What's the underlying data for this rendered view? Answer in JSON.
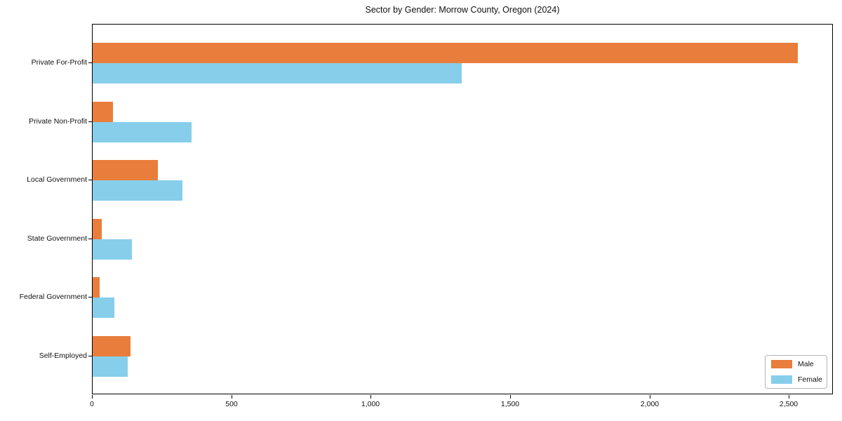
{
  "figure": {
    "background": "#ffffff",
    "text_color": "#111111",
    "spine_color": "#000000"
  },
  "chart_data": {
    "type": "bar",
    "orientation": "horizontal",
    "title": "Sector by Gender: Morrow County, Oregon (2024)",
    "categories": [
      "Private For-Profit",
      "Private Non-Profit",
      "Local Government",
      "State Government",
      "Federal Government",
      "Self-Employed"
    ],
    "series": [
      {
        "name": "Male",
        "color": "#e87d3c",
        "values": [
          2530,
          72,
          234,
          33,
          25,
          136
        ]
      },
      {
        "name": "Female",
        "color": "#87ceeb",
        "values": [
          1325,
          355,
          322,
          142,
          78,
          126
        ]
      }
    ],
    "xlabel": "",
    "ylabel": "",
    "xlim": [
      0,
      2658
    ],
    "xticks": {
      "values": [
        0,
        500,
        1000,
        1500,
        2000,
        2500
      ],
      "labels": [
        "0",
        "500",
        "1,000",
        "1,500",
        "2,000",
        "2,500"
      ]
    },
    "grid": false,
    "legend_position": "lower right"
  }
}
